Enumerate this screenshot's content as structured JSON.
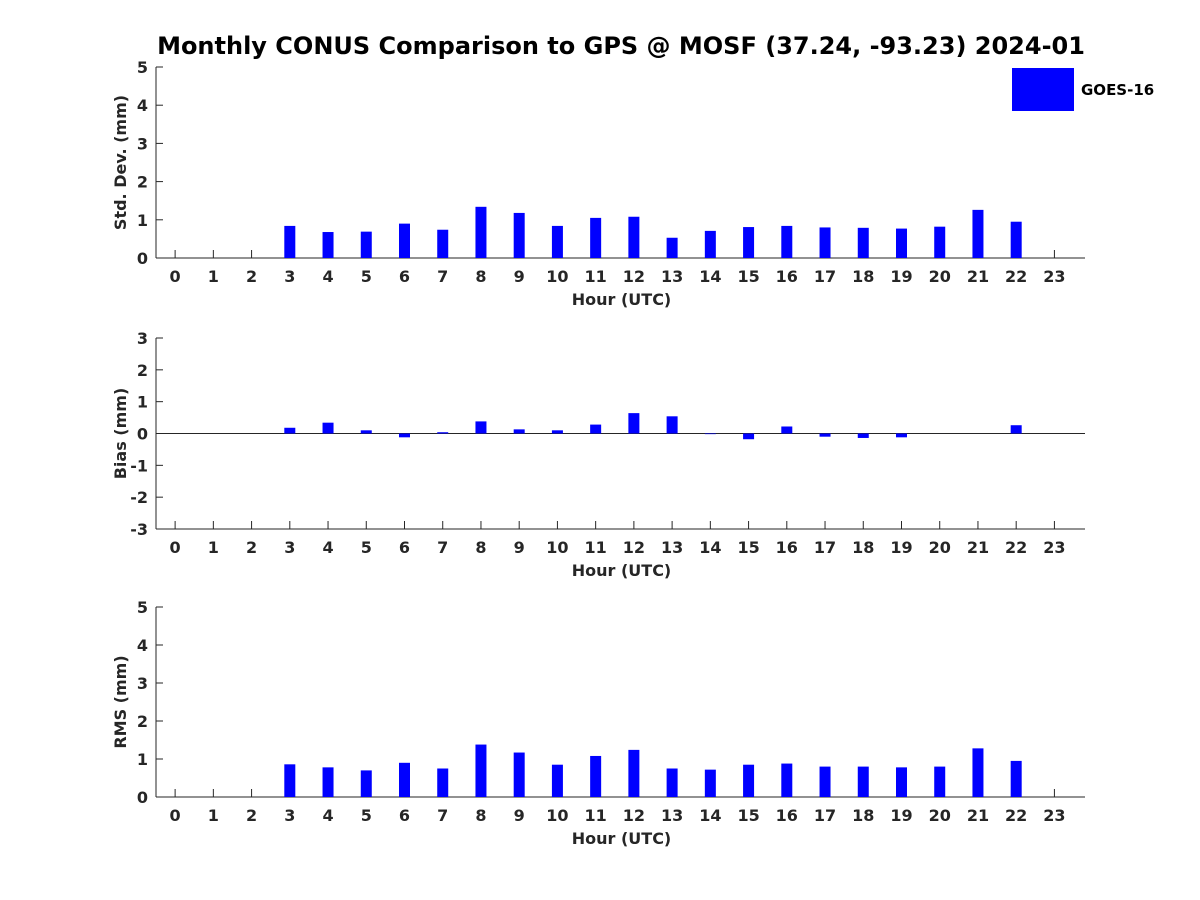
{
  "title": "Monthly CONUS Comparison to GPS @ MOSF (37.24, -93.23) 2024-01",
  "legend": {
    "label": "GOES-16",
    "color": "#0000ff"
  },
  "chart_data": [
    {
      "type": "bar",
      "name": "std-dev",
      "xlabel": "Hour (UTC)",
      "ylabel": "Std. Dev. (mm)",
      "ylim": [
        0,
        5
      ],
      "yticks": [
        0,
        1,
        2,
        3,
        4,
        5
      ],
      "categories": [
        0,
        1,
        2,
        3,
        4,
        5,
        6,
        7,
        8,
        9,
        10,
        11,
        12,
        13,
        14,
        15,
        16,
        17,
        18,
        19,
        20,
        21,
        22,
        23
      ],
      "tick_labels": [
        "0",
        "1",
        "2",
        "3",
        "4",
        "5",
        "6",
        "7",
        "8",
        "9",
        "10",
        "11",
        "12",
        "13",
        "14",
        "15",
        "16",
        "17",
        "18",
        "19",
        "20",
        "21",
        "22",
        "23"
      ],
      "ytick_labels": [
        "0",
        "1",
        "2",
        "3",
        "4",
        "5"
      ],
      "series": [
        {
          "name": "GOES-16",
          "color": "#0000ff",
          "values": [
            null,
            null,
            null,
            0.84,
            0.68,
            0.69,
            0.9,
            0.74,
            1.34,
            1.18,
            0.84,
            1.05,
            1.08,
            0.53,
            0.71,
            0.81,
            0.84,
            0.8,
            0.79,
            0.77,
            0.82,
            1.26,
            0.95,
            null
          ]
        }
      ]
    },
    {
      "type": "bar",
      "name": "bias",
      "xlabel": "Hour (UTC)",
      "ylabel": "Bias (mm)",
      "ylim": [
        -3,
        3
      ],
      "yticks": [
        -3,
        -2,
        -1,
        0,
        1,
        2,
        3
      ],
      "categories": [
        0,
        1,
        2,
        3,
        4,
        5,
        6,
        7,
        8,
        9,
        10,
        11,
        12,
        13,
        14,
        15,
        16,
        17,
        18,
        19,
        20,
        21,
        22,
        23
      ],
      "tick_labels": [
        "0",
        "1",
        "2",
        "3",
        "4",
        "5",
        "6",
        "7",
        "8",
        "9",
        "10",
        "11",
        "12",
        "13",
        "14",
        "15",
        "16",
        "17",
        "18",
        "19",
        "20",
        "21",
        "22",
        "23"
      ],
      "ytick_labels": [
        "-3",
        "-2",
        "-1",
        "0",
        "1",
        "2",
        "3"
      ],
      "zero_line": true,
      "series": [
        {
          "name": "GOES-16",
          "color": "#0000ff",
          "values": [
            null,
            null,
            null,
            0.18,
            0.34,
            0.1,
            -0.12,
            0.04,
            0.38,
            0.13,
            0.1,
            0.28,
            0.64,
            0.54,
            -0.02,
            -0.18,
            0.22,
            -0.1,
            -0.14,
            -0.12,
            0.0,
            0.0,
            0.26,
            null
          ]
        }
      ]
    },
    {
      "type": "bar",
      "name": "rms",
      "xlabel": "Hour (UTC)",
      "ylabel": "RMS (mm)",
      "ylim": [
        0,
        5
      ],
      "yticks": [
        0,
        1,
        2,
        3,
        4,
        5
      ],
      "categories": [
        0,
        1,
        2,
        3,
        4,
        5,
        6,
        7,
        8,
        9,
        10,
        11,
        12,
        13,
        14,
        15,
        16,
        17,
        18,
        19,
        20,
        21,
        22,
        23
      ],
      "tick_labels": [
        "0",
        "1",
        "2",
        "3",
        "4",
        "5",
        "6",
        "7",
        "8",
        "9",
        "10",
        "11",
        "12",
        "13",
        "14",
        "15",
        "16",
        "17",
        "18",
        "19",
        "20",
        "21",
        "22",
        "23"
      ],
      "ytick_labels": [
        "0",
        "1",
        "2",
        "3",
        "4",
        "5"
      ],
      "series": [
        {
          "name": "GOES-16",
          "color": "#0000ff",
          "values": [
            null,
            null,
            null,
            0.86,
            0.78,
            0.7,
            0.9,
            0.75,
            1.38,
            1.17,
            0.85,
            1.08,
            1.24,
            0.75,
            0.72,
            0.85,
            0.88,
            0.8,
            0.8,
            0.78,
            0.8,
            1.28,
            0.95,
            null
          ]
        }
      ]
    }
  ]
}
